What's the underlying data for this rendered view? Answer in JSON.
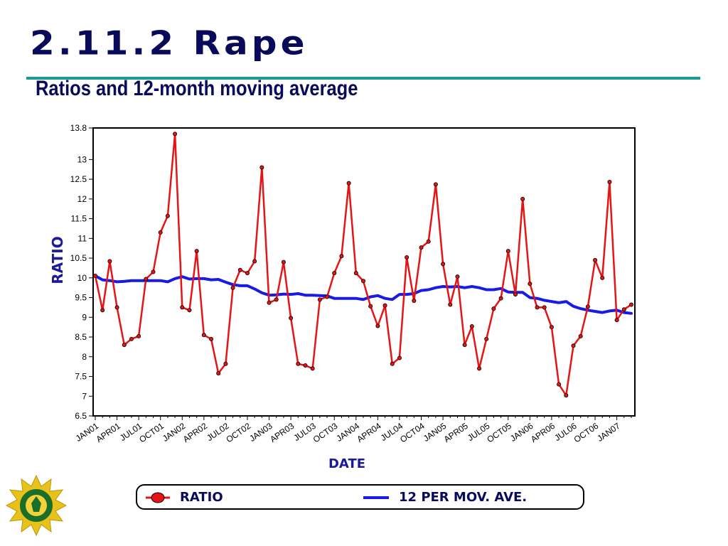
{
  "slide": {
    "title": "2.11.2 Rape",
    "subtitle": "Ratios and 12-month moving average"
  },
  "legend": {
    "ratio_label": "RATIO",
    "ma_label": "12 PER MOV. AVE."
  },
  "colors": {
    "ratio": "#e61414",
    "moving_average": "#1a1ae6",
    "title": "#0a0a5a",
    "rule": "#1a9a90"
  },
  "chart_data": {
    "type": "line",
    "xlabel": "DATE",
    "ylabel": "RATIO",
    "ylim": [
      6.5,
      13.8
    ],
    "yticks": [
      6.5,
      7,
      7.5,
      8,
      8.5,
      9,
      9.5,
      10,
      10.5,
      11,
      11.5,
      12,
      12.5,
      13,
      13.8
    ],
    "xtick_labels": [
      "JAN01",
      "APR01",
      "JUL01",
      "OCT01",
      "JAN02",
      "APR02",
      "JUL02",
      "OCT02",
      "JAN03",
      "APR03",
      "JUL03",
      "OCT03",
      "JAN04",
      "APR04",
      "JUL04",
      "OCT04",
      "JAN05",
      "APR05",
      "JUL05",
      "OCT05",
      "JAN06",
      "APR06",
      "JUL06",
      "OCT06",
      "JAN07"
    ],
    "xtick_step_months": 3,
    "legend_position": "bottom",
    "grid": false,
    "series": [
      {
        "name": "RATIO",
        "style": "line-with-markers",
        "values": [
          10.05,
          9.18,
          10.42,
          9.25,
          8.3,
          8.45,
          8.52,
          9.97,
          10.15,
          11.15,
          11.57,
          13.65,
          9.25,
          9.18,
          10.68,
          8.55,
          8.45,
          7.58,
          7.82,
          9.75,
          10.2,
          10.12,
          10.42,
          12.8,
          9.37,
          9.45,
          10.4,
          8.98,
          7.82,
          7.78,
          7.7,
          9.45,
          9.52,
          10.12,
          10.55,
          12.4,
          10.12,
          9.92,
          9.28,
          8.78,
          9.3,
          7.82,
          7.97,
          10.52,
          9.42,
          10.77,
          10.92,
          12.37,
          10.35,
          9.32,
          10.03,
          8.3,
          8.77,
          7.7,
          8.45,
          9.22,
          9.48,
          10.68,
          9.58,
          12.0,
          9.85,
          9.25,
          9.25,
          8.75,
          7.3,
          7.02,
          8.28,
          8.52,
          9.27,
          10.45,
          10.0,
          12.43,
          8.93,
          9.2,
          9.32
        ]
      },
      {
        "name": "12 PER MOV. AVE.",
        "style": "line",
        "values": [
          10.05,
          9.95,
          9.93,
          9.9,
          9.91,
          9.93,
          9.93,
          9.93,
          9.93,
          9.93,
          9.9,
          9.98,
          10.03,
          9.97,
          9.98,
          9.98,
          9.95,
          9.96,
          9.89,
          9.83,
          9.8,
          9.8,
          9.72,
          9.62,
          9.56,
          9.57,
          9.59,
          9.58,
          9.6,
          9.56,
          9.56,
          9.55,
          9.54,
          9.48,
          9.48,
          9.48,
          9.48,
          9.45,
          9.52,
          9.55,
          9.48,
          9.45,
          9.58,
          9.58,
          9.6,
          9.68,
          9.7,
          9.75,
          9.78,
          9.77,
          9.78,
          9.75,
          9.78,
          9.75,
          9.7,
          9.7,
          9.73,
          9.64,
          9.63,
          9.63,
          9.5,
          9.48,
          9.43,
          9.4,
          9.37,
          9.4,
          9.28,
          9.22,
          9.18,
          9.15,
          9.12,
          9.16,
          9.18,
          9.12,
          9.1
        ]
      }
    ]
  }
}
